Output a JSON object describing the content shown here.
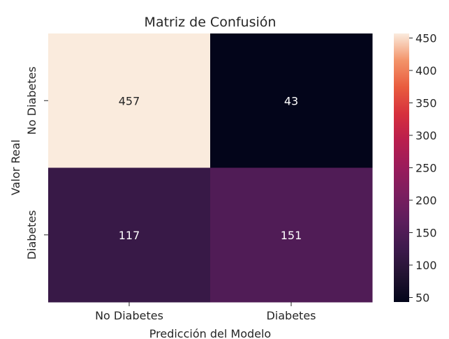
{
  "chart_data": {
    "type": "heatmap",
    "title": "Matriz de Confusión",
    "xlabel": "Predicción del Modelo",
    "ylabel": "Valor Real",
    "x_categories": [
      "No Diabetes",
      "Diabetes"
    ],
    "y_categories": [
      "No Diabetes",
      "Diabetes"
    ],
    "values": [
      [
        457,
        43
      ],
      [
        117,
        151
      ]
    ],
    "colormap": "rocket",
    "colorbar": {
      "min": 43,
      "max": 457,
      "ticks": [
        50,
        100,
        150,
        200,
        250,
        300,
        350,
        400,
        450
      ]
    },
    "annotations": true
  }
}
